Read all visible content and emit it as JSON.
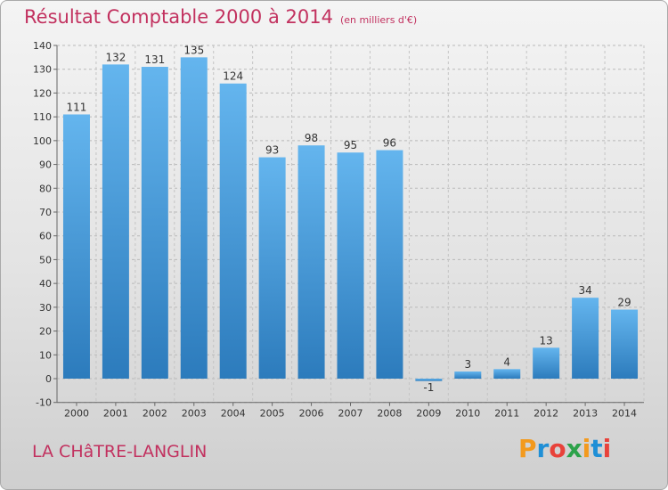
{
  "header": {
    "title": "Résultat Comptable 2000 à 2014",
    "unit": "(en milliers d'€)"
  },
  "footer": {
    "commune": "LA CHâTRE-LANGLIN",
    "logo_text": "Proxiti",
    "logo_colors": [
      "#f39a1e",
      "#1f8fd6",
      "#e8423a",
      "#2ca24a",
      "#f39a1e",
      "#1f8fd6",
      "#e8423a"
    ]
  },
  "colors": {
    "bar_light": "#5eb0ea",
    "bar_dark": "#2f7fc0",
    "title": "#c2315f",
    "axis": "#555555"
  },
  "chart_data": {
    "type": "bar",
    "title": "Résultat Comptable 2000 à 2014",
    "subtitle": "(en milliers d'€)",
    "xlabel": "",
    "ylabel": "",
    "categories": [
      "2000",
      "2001",
      "2002",
      "2003",
      "2004",
      "2005",
      "2006",
      "2007",
      "2008",
      "2009",
      "2010",
      "2011",
      "2012",
      "2013",
      "2014"
    ],
    "values": [
      111,
      132,
      131,
      135,
      124,
      93,
      98,
      95,
      96,
      -1,
      3,
      4,
      13,
      34,
      29
    ],
    "ylim": [
      -10,
      140
    ],
    "yticks": [
      -10,
      0,
      10,
      20,
      30,
      40,
      50,
      60,
      70,
      80,
      90,
      100,
      110,
      120,
      130,
      140
    ],
    "grid": true
  }
}
